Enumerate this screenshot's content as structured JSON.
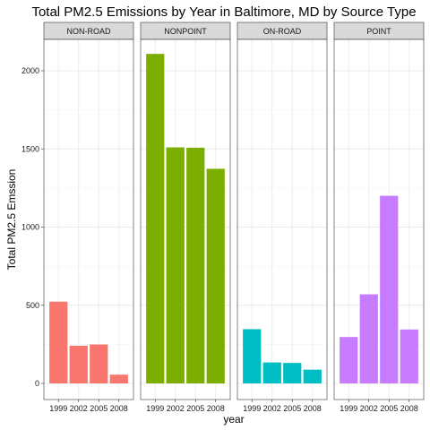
{
  "chart_data": {
    "type": "bar",
    "title": "Total PM2.5 Emissions by Year in Baltimore, MD by Source Type",
    "xlabel": "year",
    "ylabel": "Total PM2.5 Emssion",
    "categories": [
      "1999",
      "2002",
      "2005",
      "2008"
    ],
    "ylim": [
      0,
      2200
    ],
    "yticks": [
      0,
      500,
      1000,
      1500,
      2000
    ],
    "grid": true,
    "facets": [
      {
        "name": "NON-ROAD",
        "color": "#F8766D",
        "values": [
          523,
          241,
          249,
          56
        ]
      },
      {
        "name": "NONPOINT",
        "color": "#7CAE00",
        "values": [
          2108,
          1510,
          1508,
          1373
        ]
      },
      {
        "name": "ON-ROAD",
        "color": "#00BFC4",
        "values": [
          347,
          134,
          131,
          88
        ]
      },
      {
        "name": "POINT",
        "color": "#C77CFF",
        "values": [
          297,
          570,
          1200,
          345
        ]
      }
    ]
  }
}
